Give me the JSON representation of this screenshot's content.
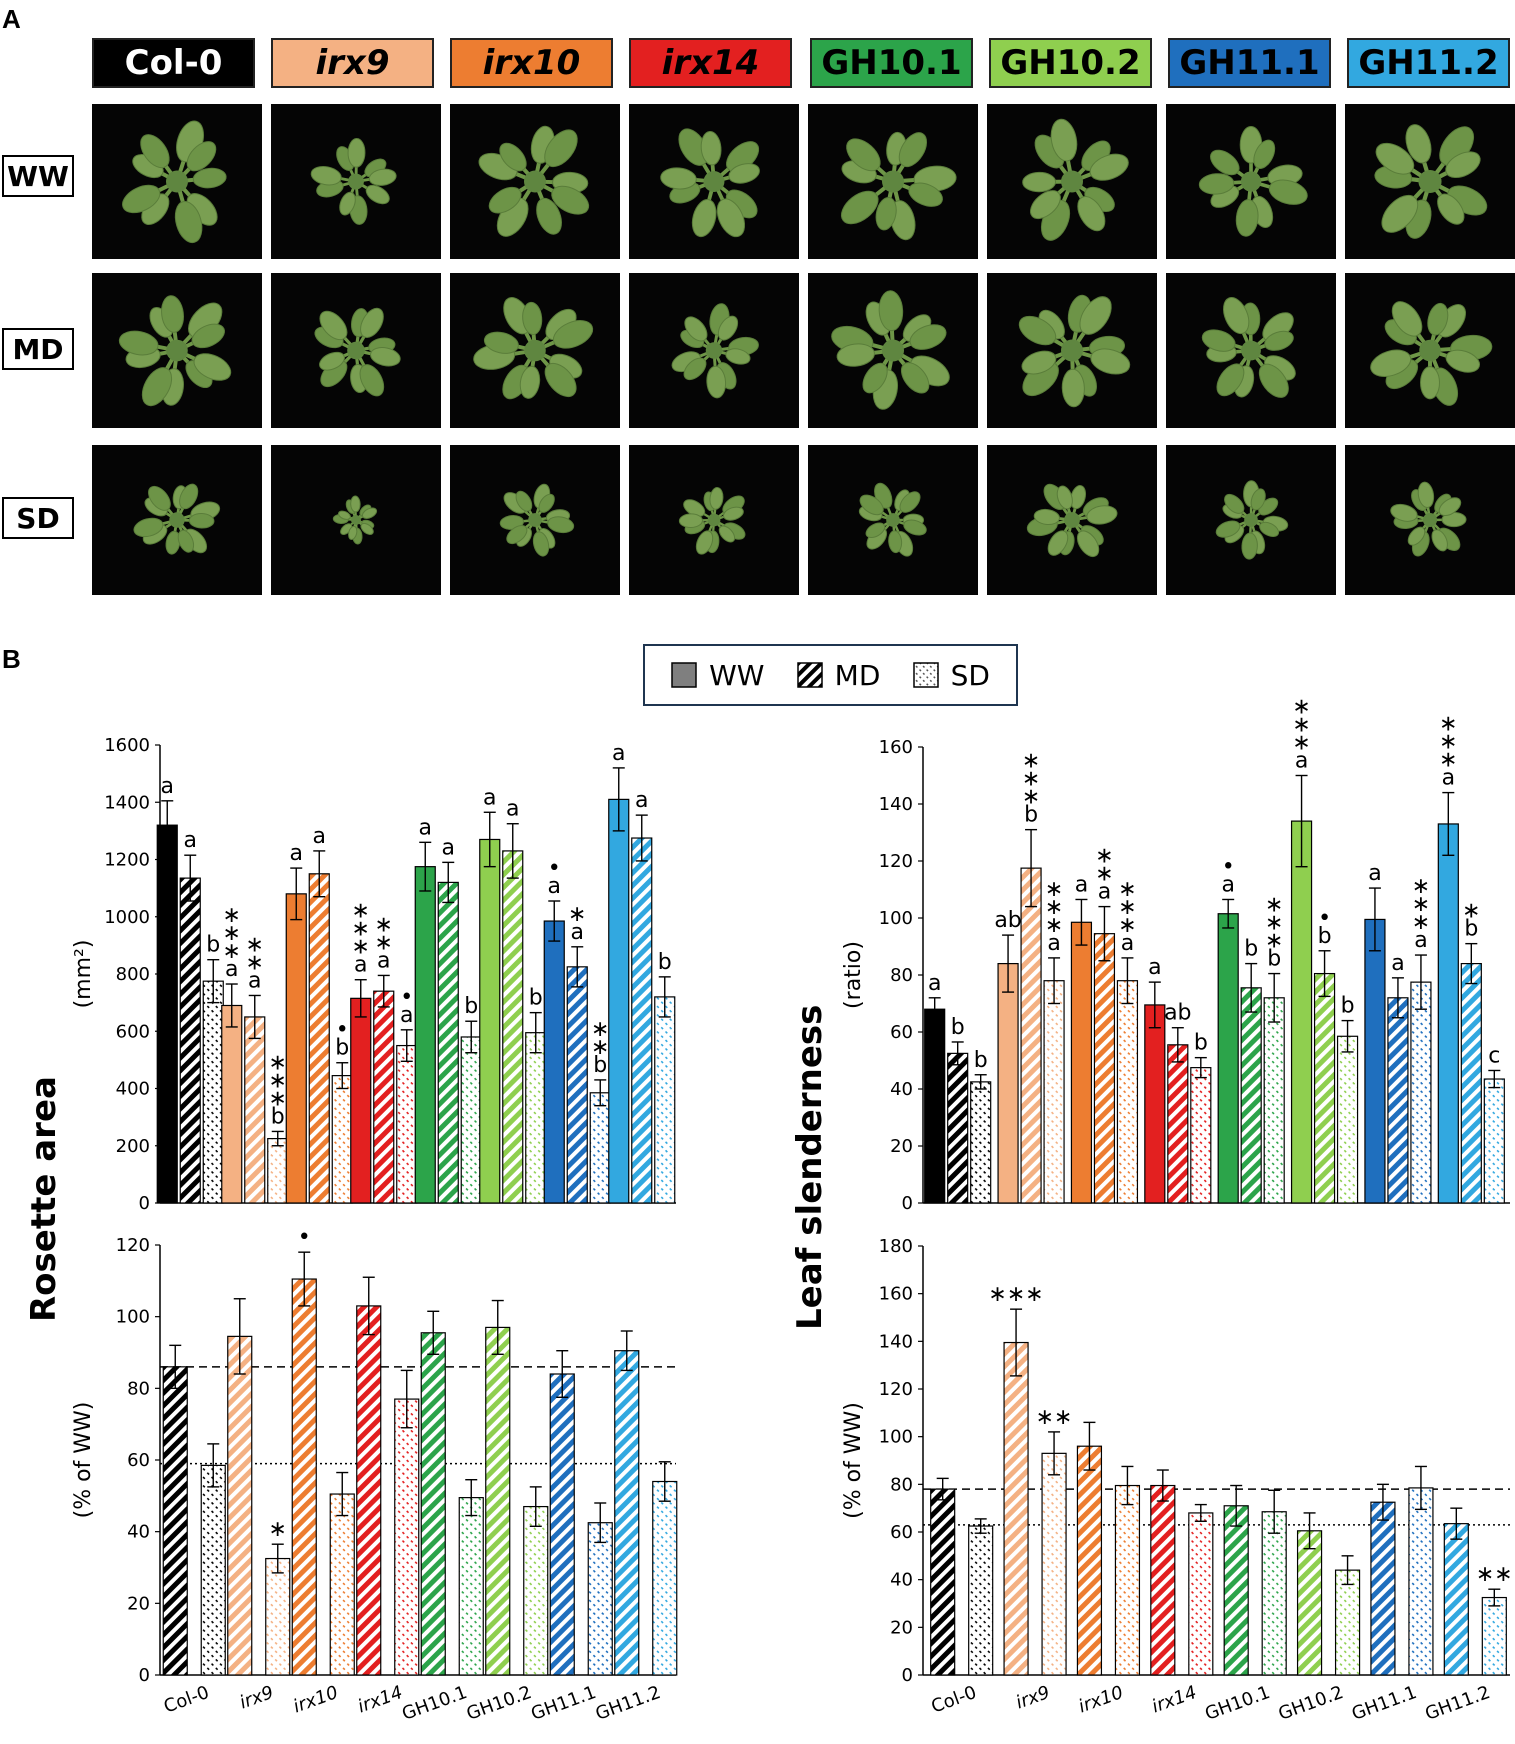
{
  "panel_letters": [
    "A",
    "B"
  ],
  "genotypes": [
    "Col-0",
    "irx9",
    "irx10",
    "irx14",
    "GH10.1",
    "GH10.2",
    "GH11.1",
    "GH11.2"
  ],
  "genotype_italic": [
    false,
    true,
    true,
    true,
    false,
    false,
    false,
    false
  ],
  "colors": {
    "Col-0": "#000000",
    "irx9": "#f4b183",
    "irx10": "#ed7d31",
    "irx14": "#e32020",
    "GH10.1": "#2ca44a",
    "GH10.2": "#8fcf4f",
    "GH11.1": "#1f6fbe",
    "GH11.2": "#32a8e0"
  },
  "conditions": [
    "WW",
    "MD",
    "SD"
  ],
  "photo_scale": {
    "WW": [
      1.0,
      0.72,
      1.0,
      0.95,
      1.0,
      1.0,
      0.92,
      1.05
    ],
    "MD": [
      0.98,
      0.8,
      0.98,
      0.75,
      1.0,
      1.0,
      0.9,
      0.98
    ],
    "SD": [
      0.7,
      0.38,
      0.62,
      0.58,
      0.62,
      0.72,
      0.62,
      0.64
    ]
  },
  "legend": {
    "ww": "WW",
    "md": "MD",
    "sd": "SD"
  },
  "labels": {
    "rosette_area": "Rosette area",
    "leaf_slenderness": "Leaf slenderness",
    "mm2": "(mm²)",
    "ratio": "(ratio)",
    "pct_ww": "(% of WW)"
  },
  "chart_data": [
    {
      "id": "rosette_area_abs",
      "type": "bar",
      "ylabel": "(mm²)",
      "ylim": [
        0,
        1600
      ],
      "yticks": [
        0,
        200,
        400,
        600,
        800,
        1000,
        1200,
        1400,
        1600
      ],
      "categories": [
        "Col-0",
        "irx9",
        "irx10",
        "irx14",
        "GH10.1",
        "GH10.2",
        "GH11.1",
        "GH11.2"
      ],
      "series": [
        {
          "name": "WW",
          "values": [
            1320,
            690,
            1080,
            715,
            1175,
            1270,
            985,
            1410
          ],
          "errors": [
            85,
            75,
            90,
            65,
            85,
            95,
            70,
            110
          ],
          "labels": [
            "a",
            "∗\n∗\n∗\na",
            "a",
            "∗\n∗\n∗\na",
            "a",
            "a",
            "•\na",
            "a"
          ]
        },
        {
          "name": "MD",
          "values": [
            1135,
            650,
            1150,
            740,
            1120,
            1230,
            825,
            1275
          ],
          "errors": [
            80,
            75,
            80,
            55,
            70,
            95,
            70,
            80
          ],
          "labels": [
            "a",
            "∗\n∗\na",
            "a",
            "∗\n∗\na",
            "a",
            "a",
            "∗\na",
            "a"
          ]
        },
        {
          "name": "SD",
          "values": [
            775,
            225,
            445,
            550,
            580,
            595,
            385,
            720
          ],
          "errors": [
            75,
            25,
            45,
            55,
            55,
            70,
            45,
            70
          ],
          "labels": [
            "b",
            "∗\n∗\n∗\nb",
            "•\nb",
            "•\na",
            "b",
            "b",
            "∗\n∗\nb",
            "b"
          ]
        }
      ]
    },
    {
      "id": "rosette_area_pct",
      "type": "bar",
      "ylabel": "(% of WW)",
      "ylim": [
        0,
        120
      ],
      "yticks": [
        0,
        20,
        40,
        60,
        80,
        100,
        120
      ],
      "categories": [
        "Col-0",
        "irx9",
        "irx10",
        "irx14",
        "GH10.1",
        "GH10.2",
        "GH11.1",
        "GH11.2"
      ],
      "reference_lines": {
        "MD": 86,
        "SD": 59
      },
      "series": [
        {
          "name": "MD",
          "values": [
            86,
            94.5,
            110.5,
            103,
            95.5,
            97,
            84,
            90.5
          ],
          "errors": [
            6,
            10.5,
            7.5,
            8,
            6,
            7.5,
            6.5,
            5.5
          ],
          "labels": [
            "",
            "",
            "•",
            "",
            "",
            "",
            "",
            ""
          ]
        },
        {
          "name": "SD",
          "values": [
            58.5,
            32.5,
            50.5,
            77,
            49.5,
            47,
            42.5,
            54
          ],
          "errors": [
            6,
            4,
            6,
            8,
            5,
            5.5,
            5.5,
            5.5
          ],
          "labels": [
            "",
            "∗",
            "",
            "",
            "",
            "",
            "",
            ""
          ]
        }
      ]
    },
    {
      "id": "leaf_slenderness_abs",
      "type": "bar",
      "ylabel": "(ratio)",
      "ylim": [
        0,
        160
      ],
      "yticks": [
        0,
        20,
        40,
        60,
        80,
        100,
        120,
        140,
        160
      ],
      "categories": [
        "Col-0",
        "irx9",
        "irx10",
        "irx14",
        "GH10.1",
        "GH10.2",
        "GH11.1",
        "GH11.2"
      ],
      "series": [
        {
          "name": "WW",
          "values": [
            68,
            84,
            98.5,
            69.5,
            101.5,
            134,
            99.5,
            133
          ],
          "errors": [
            4,
            10,
            8,
            8,
            5,
            16,
            11,
            11
          ],
          "labels": [
            "a",
            "ab",
            "a",
            "a",
            "•\na",
            "∗\n∗\n∗\na",
            "a",
            "∗\n∗\n∗\na"
          ]
        },
        {
          "name": "MD",
          "values": [
            52.5,
            117.5,
            94.5,
            55.5,
            75.5,
            80.5,
            72,
            84
          ],
          "errors": [
            4,
            13.5,
            9.5,
            6,
            8.5,
            8,
            7,
            7
          ],
          "labels": [
            "b",
            "∗\n∗\n∗\nb",
            "∗\n∗\na",
            "ab",
            "b",
            "•\nb",
            "a",
            "∗\nb"
          ]
        },
        {
          "name": "SD",
          "values": [
            42.5,
            78,
            78,
            47.5,
            72,
            58.5,
            77.5,
            43.5
          ],
          "errors": [
            2.5,
            8,
            8,
            3.5,
            8.5,
            5.5,
            9.5,
            3
          ],
          "labels": [
            "b",
            "∗\n∗\n∗\na",
            "∗\n∗\n∗\na",
            "b",
            "∗\n∗\n∗\nb",
            "b",
            "∗\n∗\n∗\na",
            "c"
          ]
        }
      ]
    },
    {
      "id": "leaf_slenderness_pct",
      "type": "bar",
      "ylabel": "(% of WW)",
      "ylim": [
        0,
        180
      ],
      "yticks": [
        0,
        20,
        40,
        60,
        80,
        100,
        120,
        140,
        160,
        180
      ],
      "categories": [
        "Col-0",
        "irx9",
        "irx10",
        "irx14",
        "GH10.1",
        "GH10.2",
        "GH11.1",
        "GH11.2"
      ],
      "reference_lines": {
        "MD": 78,
        "SD": 63
      },
      "series": [
        {
          "name": "MD",
          "values": [
            78,
            139.5,
            96,
            79.5,
            71,
            60.5,
            72.5,
            63.5
          ],
          "errors": [
            4.5,
            14,
            10,
            6.5,
            8.5,
            7.5,
            7.5,
            6.5
          ],
          "labels": [
            "",
            "∗∗∗",
            "",
            "",
            "",
            "",
            "",
            ""
          ]
        },
        {
          "name": "SD",
          "values": [
            62.5,
            93,
            79.5,
            68,
            68.5,
            44,
            78.5,
            32.5
          ],
          "errors": [
            3,
            9,
            8,
            3.5,
            9,
            6,
            9,
            3.5
          ],
          "labels": [
            "",
            "∗∗",
            "",
            "",
            "",
            "",
            "",
            "∗∗"
          ]
        }
      ]
    }
  ]
}
